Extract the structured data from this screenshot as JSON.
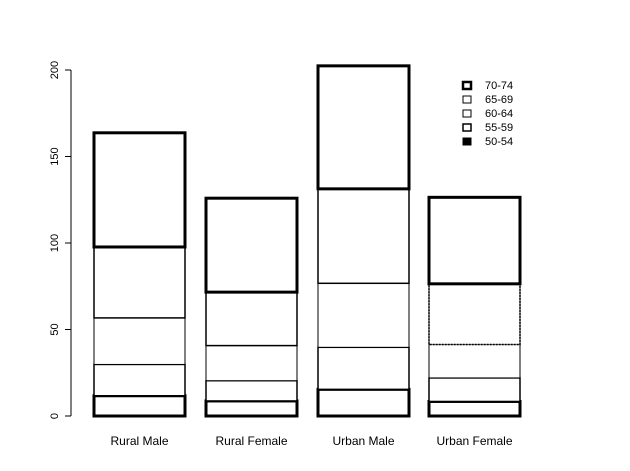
{
  "chart_data": {
    "type": "bar",
    "stacked": true,
    "categories": [
      "Rural Male",
      "Rural Female",
      "Urban Male",
      "Urban Female"
    ],
    "series": [
      {
        "name": "50-54",
        "values": [
          11.7,
          8.7,
          15.4,
          8.4
        ]
      },
      {
        "name": "55-59",
        "values": [
          18.1,
          11.7,
          24.3,
          13.6
        ]
      },
      {
        "name": "60-64",
        "values": [
          26.9,
          20.3,
          37.0,
          19.3
        ]
      },
      {
        "name": "65-69",
        "values": [
          41.0,
          30.9,
          54.6,
          35.1
        ]
      },
      {
        "name": "70-74",
        "values": [
          66.0,
          54.3,
          71.1,
          50.0
        ]
      }
    ],
    "legend_labels": [
      "70-74",
      "65-69",
      "60-64",
      "55-59",
      "50-54"
    ],
    "y_ticks": [
      "0",
      "50",
      "100",
      "150",
      "200"
    ],
    "ylim": [
      0,
      200
    ],
    "title": "",
    "xlabel": "",
    "ylabel": "",
    "grid": false,
    "legend_position": "top-right",
    "colors": {
      "fill": "#ffffff",
      "stroke": "#000000"
    }
  }
}
